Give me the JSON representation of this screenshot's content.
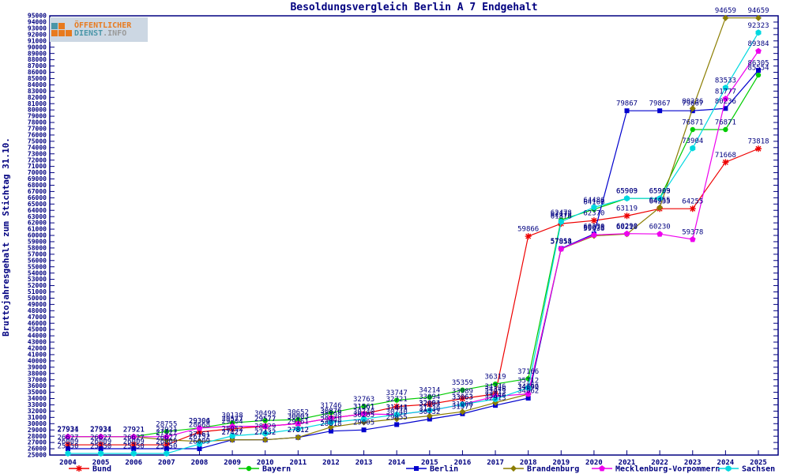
{
  "page": {
    "title": "Besoldungsvergleich Berlin A 7 Endgehalt"
  },
  "logo": {
    "line1": "ÖFFENTLICHER",
    "line2_a": "DIENST",
    "line2_b": ".INFO",
    "orange": "#e87a1e",
    "teal": "#4a96a8",
    "gray": "#9a9a9a",
    "bg": "#ccd7e3"
  },
  "axis": {
    "y_label": "Bruttojahresgehalt zum Stichtag 31.10.",
    "text_color": "#000080"
  },
  "chart_data": {
    "type": "line",
    "title": "Besoldungsvergleich Berlin A 7 Endgehalt",
    "xlabel": "",
    "ylabel": "Bruttojahresgehalt zum Stichtag 31.10.",
    "x": [
      2004,
      2005,
      2006,
      2007,
      2008,
      2009,
      2010,
      2011,
      2012,
      2013,
      2014,
      2015,
      2016,
      2017,
      2018,
      2019,
      2020,
      2021,
      2022,
      2023,
      2024,
      2025
    ],
    "ylim": [
      25000,
      95000
    ],
    "ytick_step": 1000,
    "grid": false,
    "legend_position": "bottom",
    "point_labels": true,
    "series": [
      {
        "name": "Bund",
        "color": "#ee0000",
        "marker": "star",
        "values": [
          26627,
          26627,
          26627,
          26627,
          28668,
          29204,
          29577,
          30003,
          30876,
          31561,
          32721,
          33094,
          33989,
          34746,
          59866,
          61876,
          62370,
          63119,
          64255,
          64255,
          71668,
          73818
        ]
      },
      {
        "name": "Bayern",
        "color": "#00cc00",
        "marker": "circle",
        "values": [
          27934,
          27934,
          27921,
          28755,
          29306,
          30138,
          30499,
          30652,
          31746,
          32763,
          33747,
          34214,
          35359,
          36319,
          37166,
          62478,
          64166,
          65903,
          65903,
          76871,
          76871,
          85554
        ]
      },
      {
        "name": "Berlin",
        "color": "#0000cd",
        "marker": "square",
        "values": [
          26009,
          26009,
          26009,
          26009,
          26009,
          27427,
          27432,
          27812,
          28818,
          29005,
          29855,
          30732,
          31577,
          32913,
          34062,
          57911,
          60230,
          79867,
          79867,
          79867,
          80236,
          86305
        ]
      },
      {
        "name": "Brandenburg",
        "color": "#8b7d00",
        "marker": "diamond",
        "values": [
          27921,
          27921,
          27921,
          27427,
          27161,
          27427,
          27432,
          27812,
          29448,
          30205,
          30740,
          31230,
          31900,
          33346,
          34692,
          57858,
          59936,
          60210,
          64455,
          80236,
          94659,
          94659
        ]
      },
      {
        "name": "Mecklenburg-Vorpommern",
        "color": "#ee00ee",
        "marker": "pentagon",
        "values": [
          27934,
          27934,
          27921,
          27921,
          29304,
          29577,
          29577,
          30003,
          30876,
          31561,
          31441,
          32063,
          33063,
          34346,
          34746,
          57858,
          60075,
          60290,
          60230,
          59378,
          81777,
          89384
        ]
      },
      {
        "name": "Sachsen",
        "color": "#00d8e0",
        "marker": "hexagon",
        "values": [
          25250,
          25250,
          25250,
          25250,
          26752,
          28052,
          28429,
          29161,
          30198,
          30740,
          31444,
          32094,
          33063,
          33913,
          35712,
          62173,
          64486,
          65909,
          65909,
          73904,
          83533,
          92323
        ]
      }
    ]
  }
}
